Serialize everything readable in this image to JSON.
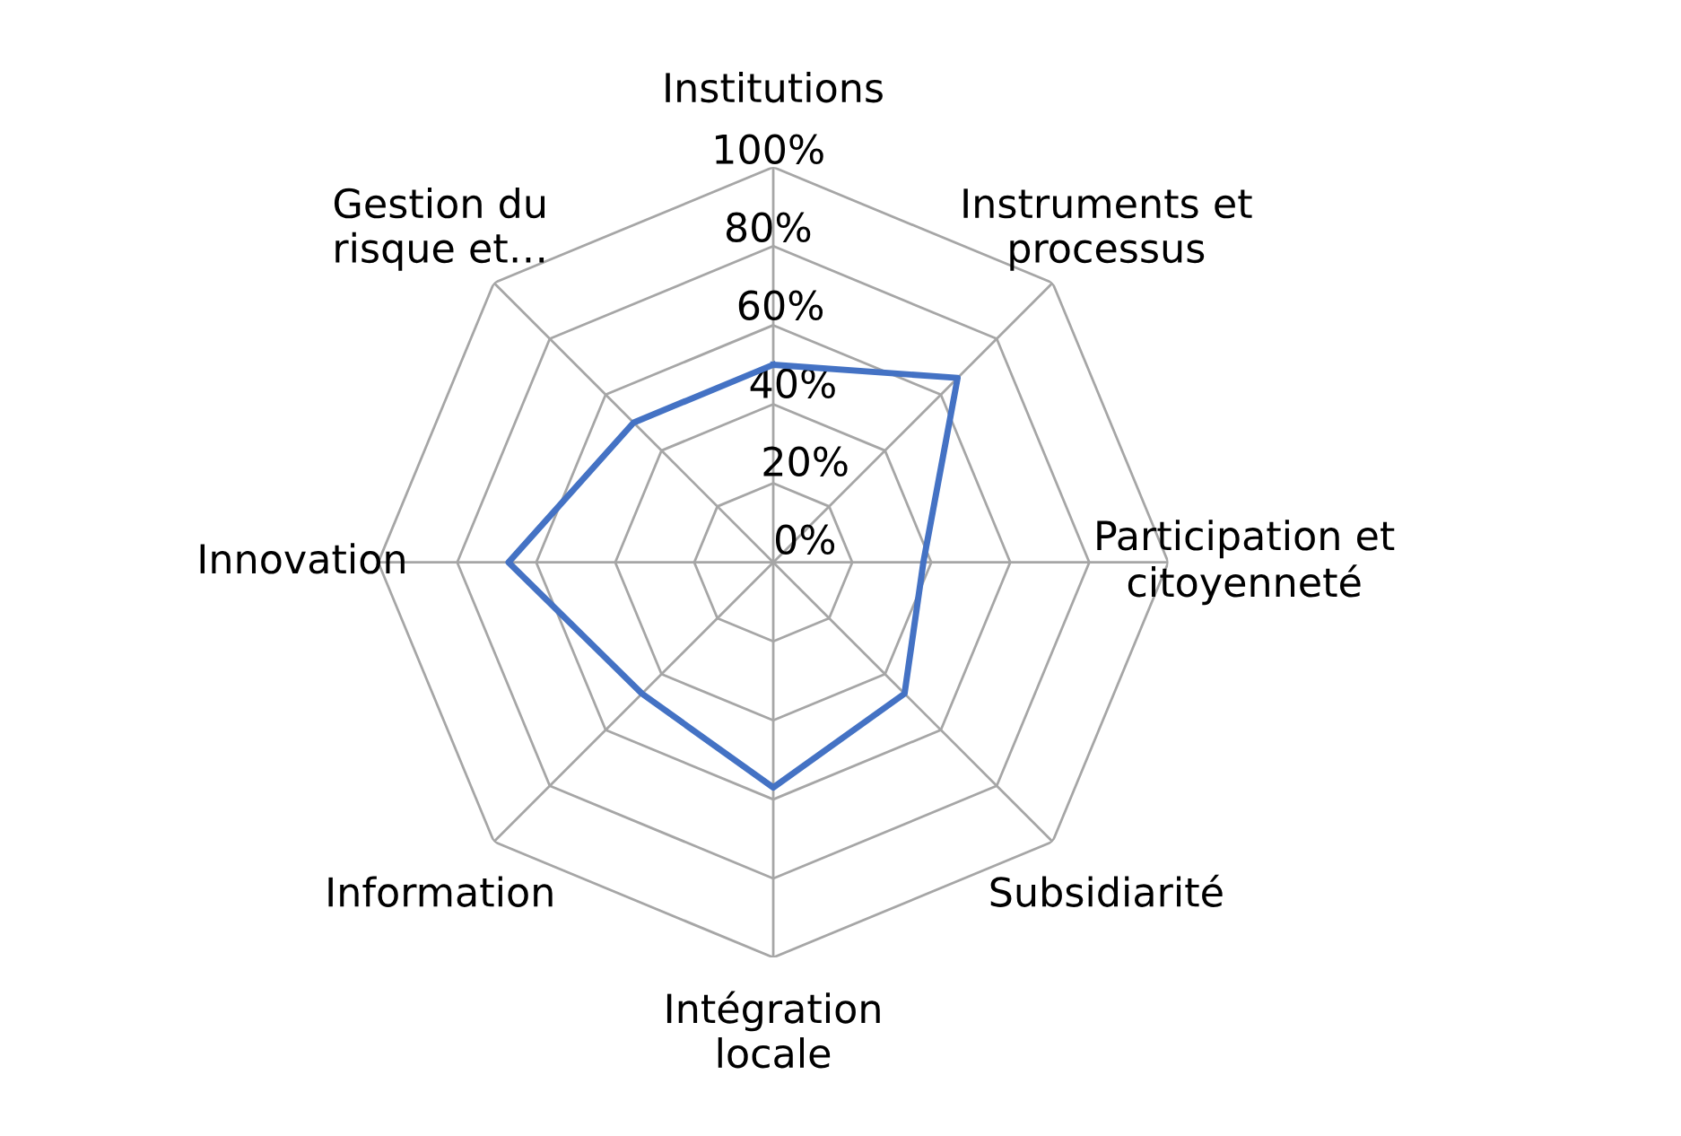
{
  "chart_data": {
    "type": "radar",
    "categories": [
      "Institutions",
      "Instruments et\nprocessus",
      "Participation et\ncitoyenneté",
      "Subsidiarité",
      "Intégration\nlocale",
      "Information",
      "Innovation",
      "Gestion du\nrisque et…"
    ],
    "series": [
      {
        "color": "#4472c4",
        "values": [
          0.5,
          0.66,
          0.38,
          0.47,
          0.57,
          0.47,
          0.67,
          0.5
        ]
      }
    ],
    "ylim": [
      0,
      1
    ],
    "yticks": [
      {
        "value": 0,
        "label": "0%"
      },
      {
        "value": 0.2,
        "label": "20%"
      },
      {
        "value": 0.4,
        "label": "40%"
      },
      {
        "value": 0.6,
        "label": "60%"
      },
      {
        "value": 0.8,
        "label": "80%"
      },
      {
        "value": 1,
        "label": "100%"
      }
    ],
    "grid": true,
    "legend": false,
    "marker": "none"
  }
}
